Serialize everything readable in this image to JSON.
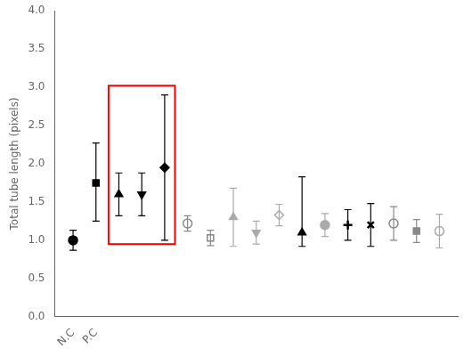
{
  "chart_data": {
    "type": "scatter",
    "ylabel": "Total tube length (pixels)",
    "x": [
      1,
      2,
      3,
      4,
      5,
      6,
      7,
      8,
      9,
      10,
      11,
      12,
      13,
      14,
      15,
      16,
      17
    ],
    "values": [
      1.0,
      1.75,
      1.6,
      1.6,
      1.95,
      1.22,
      1.03,
      1.3,
      1.1,
      1.33,
      1.1,
      1.2,
      1.2,
      1.2,
      1.22,
      1.12,
      1.12
    ],
    "error_low": [
      0.13,
      0.5,
      0.28,
      0.28,
      0.95,
      0.1,
      0.1,
      0.38,
      0.15,
      0.14,
      0.18,
      0.15,
      0.2,
      0.28,
      0.22,
      0.15,
      0.22
    ],
    "error_high": [
      0.13,
      0.52,
      0.28,
      0.28,
      0.95,
      0.1,
      0.1,
      0.38,
      0.15,
      0.14,
      0.73,
      0.15,
      0.2,
      0.28,
      0.22,
      0.15,
      0.22
    ],
    "colors": [
      "#000000",
      "#000000",
      "#000000",
      "#000000",
      "#000000",
      "#888888",
      "#888888",
      "#aaaaaa",
      "#aaaaaa",
      "#aaaaaa",
      "#000000",
      "#aaaaaa",
      "#000000",
      "#000000",
      "#888888",
      "#888888",
      "#aaaaaa"
    ],
    "markers": [
      "circle",
      "square",
      "triangle_up",
      "triangle_down",
      "diamond",
      "open_circle",
      "open_square",
      "triangle_up",
      "triangle_down",
      "open_diamond",
      "triangle_up",
      "circle",
      "plus",
      "x",
      "open_circle",
      "square",
      "open_circle"
    ],
    "highlight_box": {
      "x": [
        2.55,
        5.45
      ],
      "y": [
        0.95,
        3.02
      ],
      "color": "red"
    },
    "xlim": [
      0.2,
      17.8
    ],
    "xticks": [
      {
        "value": 1,
        "label": "N.C"
      },
      {
        "value": 2,
        "label": "P.C"
      }
    ],
    "ylim": [
      0.0,
      4.0
    ],
    "yticks": [
      {
        "value": 0.0,
        "label": "0.0"
      },
      0.5,
      {
        "value": 1.0,
        "label": "1.0"
      },
      1.5,
      {
        "value": 2.0,
        "label": "2.0"
      },
      2.5,
      {
        "value": 3.0,
        "label": "3.0"
      },
      3.5,
      {
        "value": 4.0,
        "label": "4.0"
      }
    ],
    "grid": false
  }
}
